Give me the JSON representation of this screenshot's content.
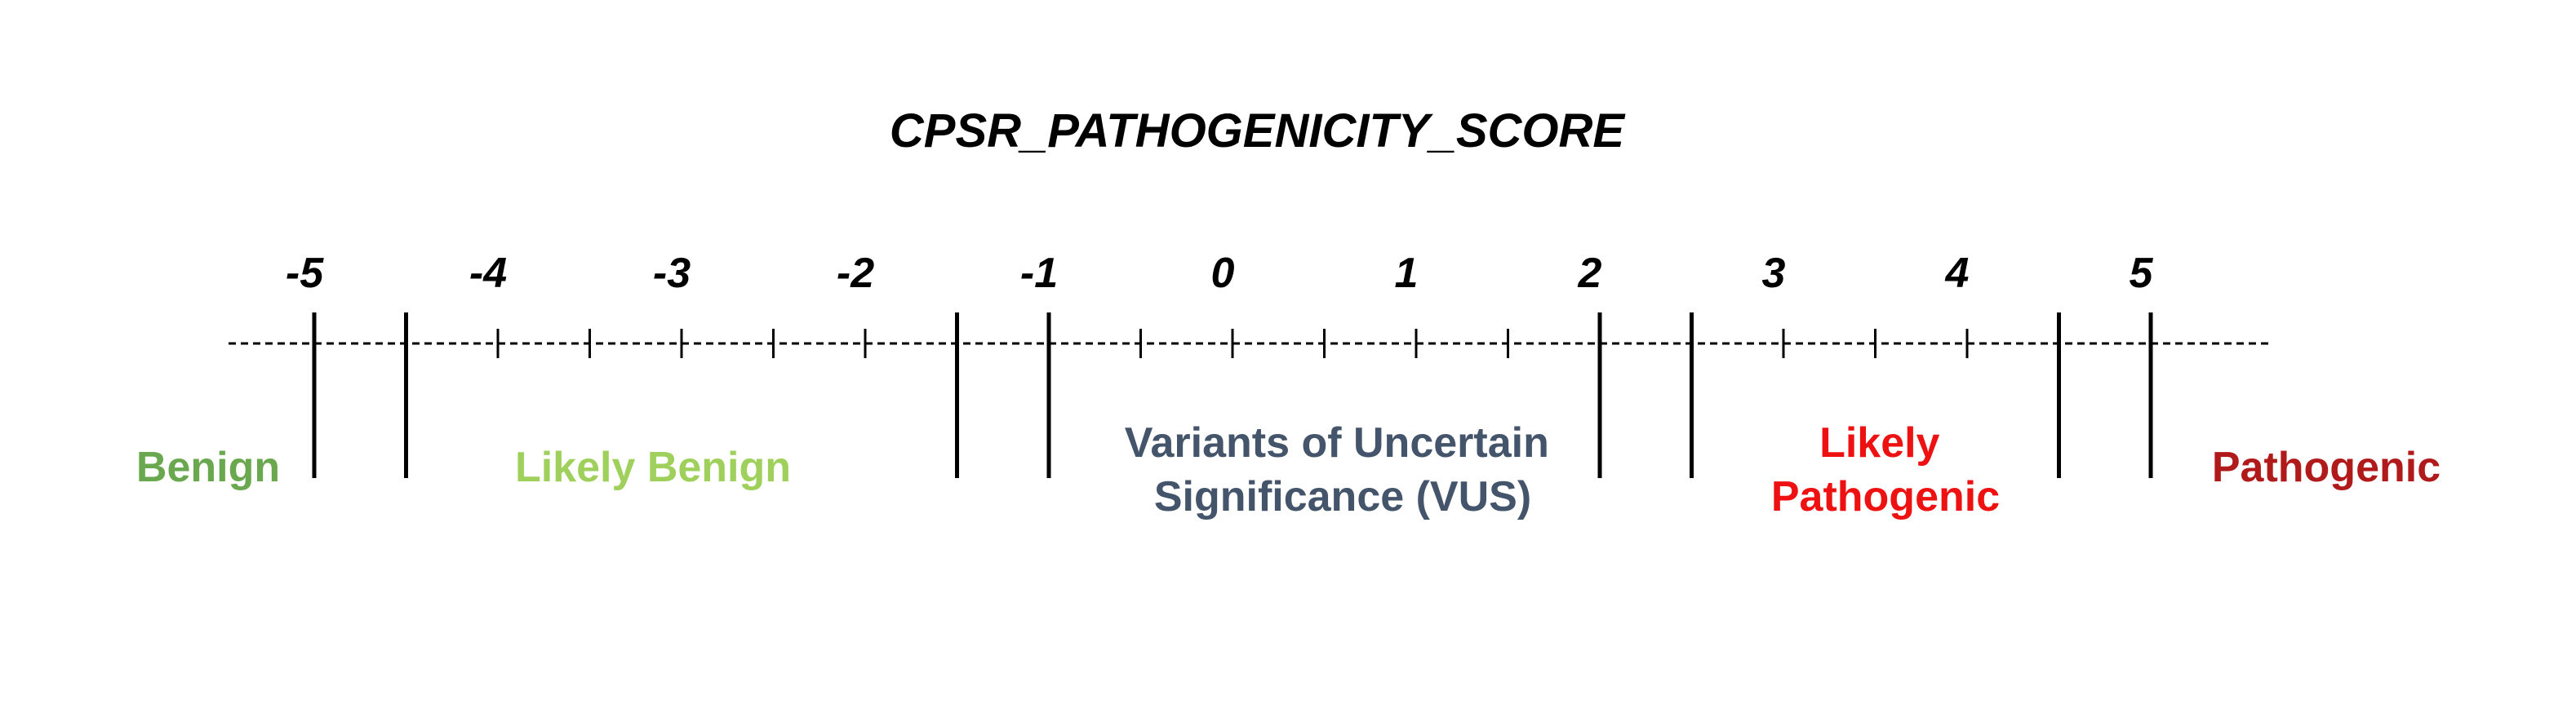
{
  "title": "CPSR_PATHOGENICITY_SCORE",
  "scale": {
    "ticks": [
      -5,
      -4,
      -3,
      -2,
      -1,
      0,
      1,
      2,
      3,
      4,
      5
    ],
    "tick_labels": [
      "-5",
      "-4",
      "-3",
      "-2",
      "-1",
      "0",
      "1",
      "2",
      "3",
      "4",
      "5"
    ],
    "boundaries": [
      -5,
      -4.5,
      -1.5,
      -1,
      2,
      2.5,
      4.5,
      5
    ],
    "minor_ticks": [
      -4,
      -3.5,
      -3,
      -2.5,
      -2,
      -0.5,
      0,
      0.5,
      1,
      1.5,
      3,
      3.5,
      4
    ]
  },
  "categories": [
    {
      "lines": [
        "Benign"
      ],
      "color": "#6aa84f"
    },
    {
      "lines": [
        "Likely Benign"
      ],
      "color": "#9fd05c"
    },
    {
      "lines": [
        "Variants of Uncertain",
        "Significance (VUS)"
      ],
      "color": "#44546a"
    },
    {
      "lines": [
        "Likely",
        "Pathogenic"
      ],
      "color": "#ee1111"
    },
    {
      "lines": [
        "Pathogenic"
      ],
      "color": "#b01a1a"
    }
  ]
}
